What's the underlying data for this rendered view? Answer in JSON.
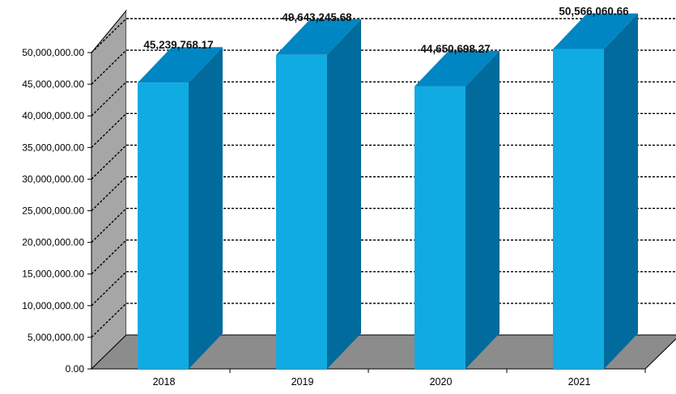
{
  "chart_data": {
    "type": "bar",
    "categories": [
      "2018",
      "2019",
      "2020",
      "2021"
    ],
    "values": [
      45239768.17,
      49643245.68,
      44650698.27,
      50566060.66
    ],
    "data_labels": [
      "45,239,768.17",
      "49,643,245.68",
      "44,650,698.27",
      "50,566,060.66"
    ],
    "y_ticks": [
      0,
      5000000,
      10000000,
      15000000,
      20000000,
      25000000,
      30000000,
      35000000,
      40000000,
      45000000,
      50000000
    ],
    "y_tick_labels": [
      "0.00",
      "5,000,000.00",
      "10,000,000.00",
      "15,000,000.00",
      "20,000,000.00",
      "25,000,000.00",
      "30,000,000.00",
      "35,000,000.00",
      "40,000,000.00",
      "45,000,000.00",
      "50,000,000.00"
    ],
    "ylim": [
      0,
      50000000
    ],
    "title": "",
    "xlabel": "",
    "ylabel": "",
    "grid": true,
    "style": "3d-column",
    "legend": "none"
  },
  "colors": {
    "bar_front": "#10ABE2",
    "bar_top": "#0086C2",
    "bar_side": "#006B9C",
    "back_wall": "#FFFFFF",
    "side_wall": "#A6A6A6",
    "floor": "#8C8C8C",
    "gridline": "#000000"
  }
}
